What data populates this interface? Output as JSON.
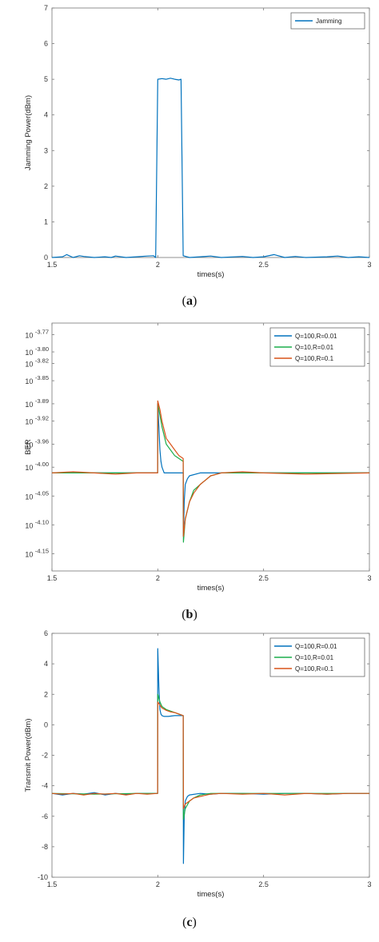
{
  "chart_data": [
    {
      "type": "line",
      "caption_open": "(",
      "caption_letter": "a",
      "caption_close": ")",
      "xlabel": "times(s)",
      "ylabel": "Jamming Power(dBm)",
      "xlim": [
        1.5,
        3
      ],
      "ylim": [
        0,
        7
      ],
      "xticks": [
        "1.5",
        "2",
        "2.5",
        "3"
      ],
      "yticks": [
        "0",
        "1",
        "2",
        "3",
        "4",
        "5",
        "6",
        "7"
      ],
      "legend_position": "top-right",
      "series": [
        {
          "name": "Jamming",
          "color": "#0072BD",
          "x": [
            1.5,
            1.55,
            1.57,
            1.6,
            1.63,
            1.65,
            1.7,
            1.75,
            1.78,
            1.8,
            1.85,
            1.9,
            1.95,
            1.98,
            1.99,
            2.0,
            2.02,
            2.04,
            2.06,
            2.08,
            2.1,
            2.11,
            2.12,
            2.15,
            2.2,
            2.25,
            2.3,
            2.4,
            2.45,
            2.5,
            2.55,
            2.6,
            2.65,
            2.7,
            2.8,
            2.85,
            2.9,
            2.95,
            3.0
          ],
          "y": [
            0.0,
            0.02,
            0.08,
            0.0,
            0.05,
            0.03,
            0.0,
            0.02,
            0.0,
            0.04,
            0.0,
            0.02,
            0.04,
            0.05,
            0.0,
            5.0,
            5.02,
            5.0,
            5.03,
            5.0,
            4.98,
            5.0,
            0.05,
            0.0,
            0.02,
            0.04,
            0.0,
            0.03,
            0.0,
            0.02,
            0.08,
            0.0,
            0.03,
            0.0,
            0.02,
            0.04,
            0.0,
            0.02,
            0.0
          ]
        }
      ]
    },
    {
      "type": "line",
      "caption_open": "(",
      "caption_letter": "b",
      "caption_close": ")",
      "xlabel": "times(s)",
      "ylabel": "BER",
      "xlim": [
        1.5,
        3
      ],
      "ylim": [
        -4.18,
        -3.75
      ],
      "xticks": [
        "1.5",
        "2",
        "2.5",
        "3"
      ],
      "ytick_base": "10",
      "yticks": [
        {
          "value": -3.77,
          "exp": "-3.77"
        },
        {
          "value": -3.8,
          "exp": "-3.80"
        },
        {
          "value": -3.82,
          "exp": "-3.82"
        },
        {
          "value": -3.85,
          "exp": "-3.85"
        },
        {
          "value": -3.89,
          "exp": "-3.89"
        },
        {
          "value": -3.92,
          "exp": "-3.92"
        },
        {
          "value": -3.96,
          "exp": "-3.96"
        },
        {
          "value": -4.0,
          "exp": "-4.00"
        },
        {
          "value": -4.05,
          "exp": "-4.05"
        },
        {
          "value": -4.1,
          "exp": "-4.10"
        },
        {
          "value": -4.15,
          "exp": "-4.15"
        }
      ],
      "legend_position": "top-right",
      "series": [
        {
          "name": "Q=100,R=0.01",
          "color": "#0072BD",
          "x": [
            1.5,
            1.6,
            1.7,
            1.8,
            1.9,
            1.999,
            2.0,
            2.005,
            2.01,
            2.015,
            2.02,
            2.03,
            2.05,
            2.08,
            2.12,
            2.121,
            2.125,
            2.13,
            2.14,
            2.15,
            2.2,
            2.3,
            2.5,
            2.7,
            3.0
          ],
          "y": [
            -4.01,
            -4.01,
            -4.01,
            -4.01,
            -4.01,
            -4.01,
            -3.89,
            -3.93,
            -3.97,
            -3.99,
            -4.0,
            -4.01,
            -4.01,
            -4.01,
            -4.01,
            -4.12,
            -4.06,
            -4.03,
            -4.02,
            -4.015,
            -4.01,
            -4.01,
            -4.01,
            -4.01,
            -4.01
          ]
        },
        {
          "name": "Q=10,R=0.01",
          "color": "#1BAE4B",
          "x": [
            1.5,
            1.7,
            1.9,
            1.999,
            2.0,
            2.01,
            2.02,
            2.04,
            2.06,
            2.08,
            2.1,
            2.12,
            2.121,
            2.13,
            2.15,
            2.17,
            2.2,
            2.25,
            2.3,
            2.5,
            3.0
          ],
          "y": [
            -4.01,
            -4.01,
            -4.01,
            -4.01,
            -3.89,
            -3.91,
            -3.93,
            -3.96,
            -3.97,
            -3.98,
            -3.985,
            -3.99,
            -4.13,
            -4.09,
            -4.06,
            -4.04,
            -4.03,
            -4.015,
            -4.01,
            -4.01,
            -4.01
          ]
        },
        {
          "name": "Q=100,R=0.1",
          "color": "#D95319",
          "x": [
            1.5,
            1.6,
            1.7,
            1.8,
            1.9,
            1.999,
            2.0,
            2.01,
            2.02,
            2.04,
            2.06,
            2.08,
            2.1,
            2.12,
            2.121,
            2.13,
            2.15,
            2.17,
            2.2,
            2.25,
            2.3,
            2.4,
            2.5,
            2.7,
            3.0
          ],
          "y": [
            -4.01,
            -4.008,
            -4.01,
            -4.012,
            -4.01,
            -4.01,
            -3.885,
            -3.9,
            -3.92,
            -3.95,
            -3.96,
            -3.97,
            -3.98,
            -3.985,
            -4.12,
            -4.09,
            -4.06,
            -4.045,
            -4.03,
            -4.015,
            -4.01,
            -4.008,
            -4.01,
            -4.012,
            -4.01
          ]
        }
      ]
    },
    {
      "type": "line",
      "caption_open": "(",
      "caption_letter": "c",
      "caption_close": ")",
      "xlabel": "times(s)",
      "ylabel": "Transmit Power(dBm)",
      "xlim": [
        1.5,
        3
      ],
      "ylim": [
        -10,
        6
      ],
      "xticks": [
        "1.5",
        "2",
        "2.5",
        "3"
      ],
      "yticks": [
        "-10",
        "-8",
        "-6",
        "-4",
        "-2",
        "0",
        "2",
        "4",
        "6"
      ],
      "legend_position": "top-right",
      "series": [
        {
          "name": "Q=100,R=0.01",
          "color": "#0072BD",
          "x": [
            1.5,
            1.55,
            1.6,
            1.65,
            1.7,
            1.75,
            1.8,
            1.85,
            1.9,
            1.95,
            1.999,
            2.0,
            2.005,
            2.01,
            2.015,
            2.02,
            2.03,
            2.05,
            2.08,
            2.1,
            2.12,
            2.121,
            2.125,
            2.13,
            2.14,
            2.15,
            2.2,
            2.25,
            2.3,
            2.4,
            2.5,
            2.6,
            2.7,
            2.8,
            2.9,
            3.0
          ],
          "y": [
            -4.5,
            -4.6,
            -4.5,
            -4.55,
            -4.45,
            -4.6,
            -4.5,
            -4.55,
            -4.5,
            -4.5,
            -4.5,
            5.0,
            2.5,
            1.0,
            0.7,
            0.6,
            0.55,
            0.55,
            0.6,
            0.6,
            0.6,
            -9.1,
            -6.0,
            -5.0,
            -4.7,
            -4.6,
            -4.5,
            -4.55,
            -4.5,
            -4.5,
            -4.55,
            -4.5,
            -4.5,
            -4.55,
            -4.5,
            -4.5
          ]
        },
        {
          "name": "Q=10,R=0.01",
          "color": "#1BAE4B",
          "x": [
            1.5,
            1.7,
            1.9,
            1.999,
            2.0,
            2.01,
            2.02,
            2.04,
            2.06,
            2.08,
            2.1,
            2.12,
            2.121,
            2.13,
            2.15,
            2.17,
            2.2,
            2.25,
            2.3,
            2.5,
            3.0
          ],
          "y": [
            -4.5,
            -4.55,
            -4.5,
            -4.5,
            2.0,
            1.5,
            1.2,
            1.0,
            0.9,
            0.8,
            0.7,
            0.6,
            -6.2,
            -5.5,
            -5.0,
            -4.8,
            -4.6,
            -4.5,
            -4.5,
            -4.5,
            -4.5
          ]
        },
        {
          "name": "Q=100,R=0.1",
          "color": "#D95319",
          "x": [
            1.5,
            1.55,
            1.6,
            1.65,
            1.7,
            1.75,
            1.8,
            1.85,
            1.9,
            1.95,
            1.999,
            2.0,
            2.01,
            2.02,
            2.04,
            2.06,
            2.08,
            2.1,
            2.12,
            2.121,
            2.13,
            2.15,
            2.17,
            2.2,
            2.25,
            2.3,
            2.4,
            2.5,
            2.6,
            2.7,
            2.8,
            2.9,
            3.0
          ],
          "y": [
            -4.5,
            -4.55,
            -4.5,
            -4.6,
            -4.5,
            -4.55,
            -4.5,
            -4.6,
            -4.5,
            -4.55,
            -4.5,
            1.5,
            1.3,
            1.1,
            0.95,
            0.85,
            0.8,
            0.7,
            0.6,
            -5.5,
            -5.2,
            -5.0,
            -4.8,
            -4.7,
            -4.55,
            -4.5,
            -4.55,
            -4.5,
            -4.6,
            -4.5,
            -4.55,
            -4.5,
            -4.5
          ]
        }
      ]
    }
  ]
}
